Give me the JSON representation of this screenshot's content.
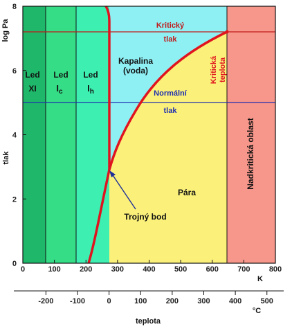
{
  "colors": {
    "ice_xi": "#1fb86a",
    "ice_ic": "#35dd86",
    "ice_ih": "#3df0b2",
    "liquid": "#8ff0f4",
    "vapor": "#fbf17a",
    "supercritical": "#f7968a",
    "curve": "#e0141e",
    "normal_pressure_line": "#1f2fb0",
    "critical_pressure_line": "#c01a1a",
    "arrow": "#1f2f9a"
  },
  "axes": {
    "y_title": "log Pa",
    "y_label": "tlak",
    "y_ticks": [
      "0",
      "2",
      "4",
      "6",
      "8"
    ],
    "x_unit": "K",
    "x_ticks": [
      "0",
      "100",
      "200",
      "300",
      "400",
      "500",
      "600",
      "700",
      "800"
    ],
    "c_unit": "°C",
    "c_ticks": [
      "-200",
      "-100",
      "0",
      "100",
      "200",
      "300",
      "400",
      "500"
    ],
    "bottom_label": "teplota"
  },
  "regions": {
    "ice_xi": {
      "line1": "Led",
      "line2": "XI",
      "sub": ""
    },
    "ice_ic": {
      "line1": "Led",
      "line2": "I",
      "sub": "c"
    },
    "ice_ih": {
      "line1": "Led",
      "line2": "I",
      "sub": "h"
    },
    "liquid": {
      "line1": "Kapalina",
      "line2": "(voda)"
    },
    "vapor": "Pára",
    "supercritical": "Nadkritická oblast"
  },
  "annotations": {
    "critical_pressure": {
      "line1": "Kritický",
      "line2": "tlak"
    },
    "normal_pressure": {
      "line1": "Normální",
      "line2": "tlak"
    },
    "critical_temperature": {
      "line1": "Kritická",
      "line2": "teplota"
    },
    "triple_point": "Trojný bod"
  }
}
